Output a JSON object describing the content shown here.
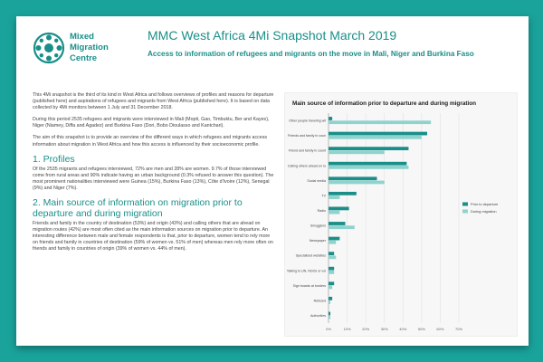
{
  "header": {
    "logo_lines": [
      "Mixed",
      "Migration",
      "Centre"
    ],
    "title": "MMC West Africa 4Mi Snapshot March 2019",
    "subtitle": "Access to information of refugees and migrants on the move in Mali, Niger and Burkina Faso"
  },
  "body": {
    "intro_paragraphs": [
      "This 4Mi snapshot is the third of its kind in West Africa and follows overviews of profiles and reasons for departure (published here) and aspirations of refugees and migrants from West Africa (published here). It is based on data collected by 4Mi monitors between 1 July and 31 December 2018.",
      "During this period 2535 refugees and migrants were interviewed in Mali (Mopti, Gao, Timbuktu, Ber and Kayes), Niger (Niamey, Diffa and Agadez) and Burkina Faso (Dori, Bobo Dioulasso and Kantchari).",
      "The aim of this snapshot is to provide an overview of the different ways in which refugees and migrants access information about migration in West Africa and how this access is influenced by their socioeconomic profile."
    ],
    "section1_heading": "1. Profiles",
    "section1_text": "Of the 2535 migrants and refugees interviewed, 72% are men and 28% are women. 9.7% of those interviewed come from rural areas and 90% indicate having an urban background (0.3% refused to answer this question). The most prominent nationalities interviewed were Guinea (15%), Burkina Faso (13%), Côte d'Ivoire (12%), Senegal (9%) and Niger (7%).",
    "section2_heading_line1": "2. Main source of information on migration prior to",
    "section2_heading_line2": "departure and during migration",
    "section2_text": "Friends and family in the country of destination (53%) and origin (43%) and calling others that are ahead on migration routes (42%) are most often cited as the main information sources on migration prior to departure. An interesting difference between male and female respondents is that, prior to departure, women tend to rely more on friends and family in countries of destination (59% of women vs. 51% of men) whereas men rely more often on friends and family in countries of origin (39% of women vs. 44% of men)."
  },
  "chart_panel": {
    "title": "Main source of information prior to departure and during migration"
  },
  "chart_data": {
    "type": "bar",
    "orientation": "horizontal",
    "title": "Main source of information prior to departure and during migration",
    "categories": [
      "Other people traveling with us/me",
      "Friends and family in country of destination",
      "Friend and family in country of origin",
      "Calling others ahead en route",
      "Social media",
      "TV",
      "Radio",
      "Smugglers",
      "Newspaper",
      "Specialised websites",
      "Talking to UN, NGOs or volunteers",
      "Sign boards at borders",
      "Refused",
      "Authorities"
    ],
    "series": [
      {
        "name": "Prior to departure",
        "color": "#1a8f89",
        "values": [
          2,
          53,
          43,
          42,
          26,
          15,
          11,
          9,
          6,
          3,
          3,
          3,
          2,
          1
        ]
      },
      {
        "name": "During migration",
        "color": "#8fd3ce",
        "values": [
          55,
          50,
          30,
          43,
          30,
          6,
          6,
          14,
          4,
          4,
          3,
          2,
          1,
          1
        ]
      }
    ],
    "xlim": [
      0,
      70
    ],
    "x_ticks": [
      "0%",
      "10%",
      "20%",
      "30%",
      "40%",
      "50%",
      "60%",
      "70%"
    ],
    "legend_position": "right",
    "colors": {
      "accent": "#1a8f89",
      "light": "#8fd3ce",
      "background": "#1aa39b"
    }
  }
}
